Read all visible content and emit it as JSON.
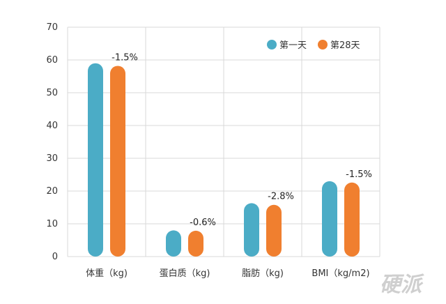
{
  "chart_data": {
    "type": "bar",
    "title": "",
    "xlabel": "",
    "ylabel": "",
    "categories": [
      "体重（kg)",
      "蛋白质（kg)",
      "脂肪（kg)",
      "BMI（kg/m2)"
    ],
    "series": [
      {
        "name": "第一天",
        "color": "#4bacc6",
        "values": [
          59,
          8,
          16.3,
          23
        ]
      },
      {
        "name": "第28天",
        "color": "#f07f2f",
        "values": [
          58.2,
          7.9,
          15.8,
          22.6
        ]
      }
    ],
    "data_labels": [
      "-1.5%",
      "-0.6%",
      "-2.8%",
      "-1.5%"
    ],
    "ylim": [
      0,
      70
    ],
    "yticks": [
      0,
      10,
      20,
      30,
      40,
      50,
      60,
      70
    ],
    "grid": true,
    "legend_position": "top-right"
  },
  "watermark": "硬派"
}
